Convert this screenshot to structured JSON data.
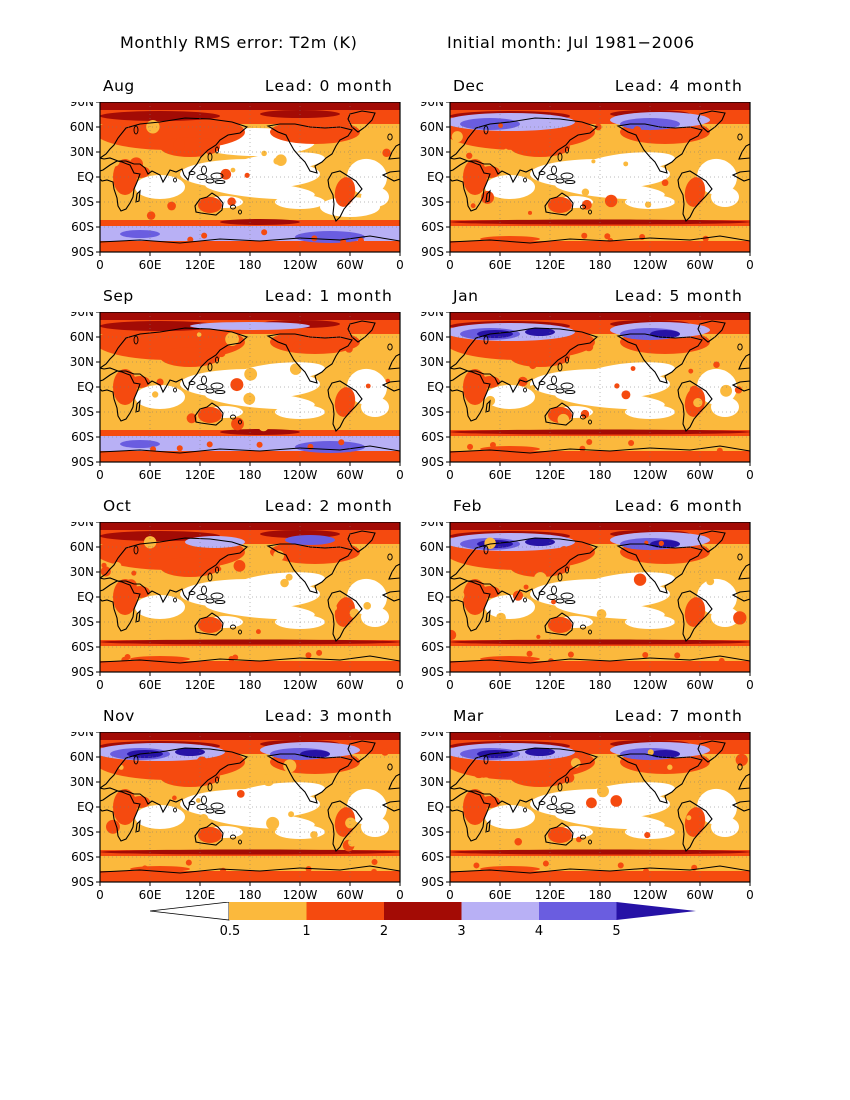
{
  "figure": {
    "title_left": "Monthly RMS error: T2m (K)",
    "title_right": "Initial month: Jul 1981−2006"
  },
  "axes": {
    "lat_ticks": [
      "90N",
      "60N",
      "30N",
      "EQ",
      "30S",
      "60S",
      "90S"
    ],
    "lon_ticks": [
      "0",
      "60E",
      "120E",
      "180",
      "120W",
      "60W",
      "0"
    ]
  },
  "colorbar": {
    "labels": [
      "0.5",
      "1",
      "2",
      "3",
      "4",
      "5"
    ],
    "colors": {
      "below": "#ffffff",
      "c1": "#fbb93d",
      "c2": "#f54a0f",
      "c3": "#a30b05",
      "c4": "#b8b0f5",
      "c5": "#6a5de0",
      "above": "#2612a6"
    }
  },
  "panels": [
    {
      "month": "Aug",
      "lead": "Lead: 0 month"
    },
    {
      "month": "Dec",
      "lead": "Lead: 4 month"
    },
    {
      "month": "Sep",
      "lead": "Lead: 1 month"
    },
    {
      "month": "Jan",
      "lead": "Lead: 5 month"
    },
    {
      "month": "Oct",
      "lead": "Lead: 2 month"
    },
    {
      "month": "Feb",
      "lead": "Lead: 6 month"
    },
    {
      "month": "Nov",
      "lead": "Lead: 3 month"
    },
    {
      "month": "Mar",
      "lead": "Lead: 7 month"
    }
  ]
}
